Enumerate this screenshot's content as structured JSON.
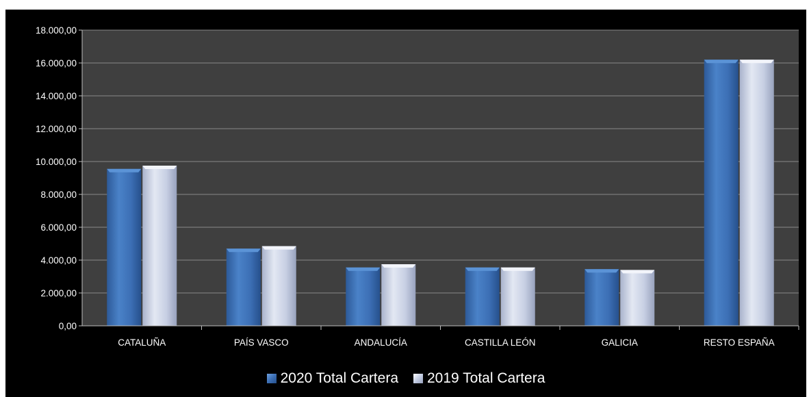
{
  "chart_data": {
    "type": "bar",
    "title": "",
    "xlabel": "",
    "ylabel": "",
    "categories": [
      "CATALUÑA",
      "PAÍS VASCO",
      "ANDALUCÍA",
      "CASTILLA LEÓN",
      "GALICIA",
      "RESTO ESPAÑA"
    ],
    "series": [
      {
        "name": "2020 Total Cartera",
        "values": [
          9550,
          4700,
          3550,
          3550,
          3450,
          16200
        ],
        "color": "#3c6fb5"
      },
      {
        "name": "2019 Total Cartera",
        "values": [
          9750,
          4850,
          3750,
          3550,
          3400,
          16200
        ],
        "color": "#c4cde3"
      }
    ],
    "ylim": [
      0,
      18000
    ],
    "yticks": [
      0,
      2000,
      4000,
      6000,
      8000,
      10000,
      12000,
      14000,
      16000,
      18000
    ],
    "ytick_labels": [
      "0,00",
      "2.000,00",
      "4.000,00",
      "6.000,00",
      "8.000,00",
      "10.000,00",
      "12.000,00",
      "14.000,00",
      "16.000,00",
      "18.000,00"
    ],
    "grid": true,
    "legend_position": "bottom",
    "plot_background": "#3f3f3f",
    "gridline_color": "#8a8a8a"
  }
}
